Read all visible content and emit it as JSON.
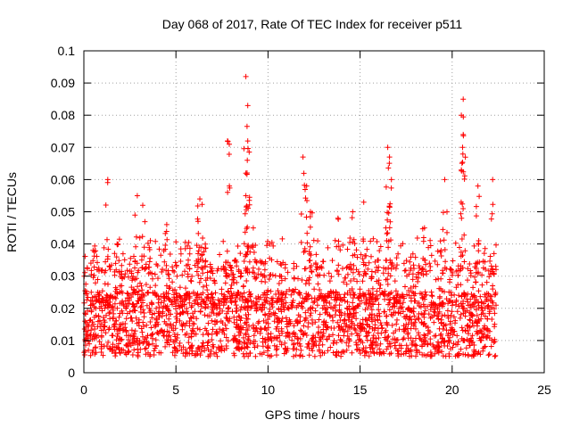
{
  "chart_data": {
    "type": "scatter",
    "title": "Day 068 of 2017, Rate Of TEC Index for receiver p511",
    "xlabel": "GPS time / hours",
    "ylabel": "ROTI / TECUs",
    "xlim": [
      0,
      25
    ],
    "ylim": [
      0,
      0.1
    ],
    "xticks": [
      "0",
      "5",
      "10",
      "15",
      "20",
      "25"
    ],
    "yticks": [
      "0",
      "0.01",
      "0.02",
      "0.03",
      "0.04",
      "0.05",
      "0.06",
      "0.07",
      "0.08",
      "0.09",
      "0.1"
    ],
    "grid": true,
    "marker": "+",
    "color": "#ff0000",
    "dense_band": {
      "x_range": [
        0,
        22.4
      ],
      "y_core_range": [
        0.005,
        0.025
      ],
      "y_min": 0.002,
      "note_points": "thousands of points; approximated"
    },
    "peaks": [
      {
        "x": 0.5,
        "y": 0.038
      },
      {
        "x": 1.3,
        "y": 0.06
      },
      {
        "x": 1.8,
        "y": 0.04
      },
      {
        "x": 2.9,
        "y": 0.055
      },
      {
        "x": 3.2,
        "y": 0.052
      },
      {
        "x": 4.5,
        "y": 0.046
      },
      {
        "x": 6.3,
        "y": 0.054
      },
      {
        "x": 6.2,
        "y": 0.047
      },
      {
        "x": 7.8,
        "y": 0.072
      },
      {
        "x": 7.9,
        "y": 0.058
      },
      {
        "x": 8.8,
        "y": 0.092
      },
      {
        "x": 8.9,
        "y": 0.083
      },
      {
        "x": 8.9,
        "y": 0.072
      },
      {
        "x": 8.8,
        "y": 0.062
      },
      {
        "x": 8.8,
        "y": 0.055
      },
      {
        "x": 9.2,
        "y": 0.045
      },
      {
        "x": 11.9,
        "y": 0.067
      },
      {
        "x": 12.1,
        "y": 0.058
      },
      {
        "x": 12.3,
        "y": 0.05
      },
      {
        "x": 13.8,
        "y": 0.048
      },
      {
        "x": 14.6,
        "y": 0.05
      },
      {
        "x": 15.2,
        "y": 0.053
      },
      {
        "x": 16.5,
        "y": 0.07
      },
      {
        "x": 16.6,
        "y": 0.067
      },
      {
        "x": 16.7,
        "y": 0.06
      },
      {
        "x": 16.4,
        "y": 0.045
      },
      {
        "x": 18.5,
        "y": 0.045
      },
      {
        "x": 19.6,
        "y": 0.06
      },
      {
        "x": 20.6,
        "y": 0.085
      },
      {
        "x": 20.5,
        "y": 0.08
      },
      {
        "x": 20.6,
        "y": 0.074
      },
      {
        "x": 20.5,
        "y": 0.063
      },
      {
        "x": 21.4,
        "y": 0.058
      },
      {
        "x": 22.2,
        "y": 0.06
      }
    ]
  }
}
